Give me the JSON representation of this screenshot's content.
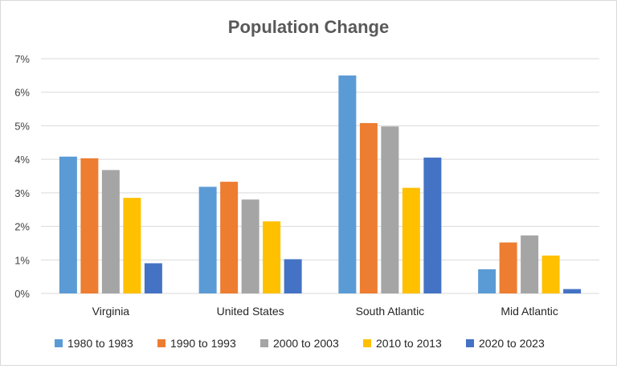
{
  "chart_data": {
    "type": "bar",
    "title": "Population Change",
    "xlabel": "",
    "ylabel": "",
    "categories": [
      "Virginia",
      "United States",
      "South Atlantic",
      "Mid Atlantic"
    ],
    "series": [
      {
        "name": "1980 to 1983",
        "color": "#5b9bd5",
        "values": [
          4.08,
          3.18,
          6.5,
          0.72
        ]
      },
      {
        "name": "1990 to 1993",
        "color": "#ed7d31",
        "values": [
          4.03,
          3.33,
          5.08,
          1.52
        ]
      },
      {
        "name": "2000 to 2003",
        "color": "#a5a5a5",
        "values": [
          3.68,
          2.8,
          4.98,
          1.73
        ]
      },
      {
        "name": "2010 to 2013",
        "color": "#ffc000",
        "values": [
          2.85,
          2.15,
          3.15,
          1.13
        ]
      },
      {
        "name": "2020 to 2023",
        "color": "#4472c4",
        "values": [
          0.9,
          1.02,
          4.05,
          0.13
        ]
      }
    ],
    "ylim": [
      0,
      7
    ],
    "yticks": [
      "0%",
      "1%",
      "2%",
      "3%",
      "4%",
      "5%",
      "6%",
      "7%"
    ],
    "grid": true,
    "legend_position": "bottom"
  }
}
